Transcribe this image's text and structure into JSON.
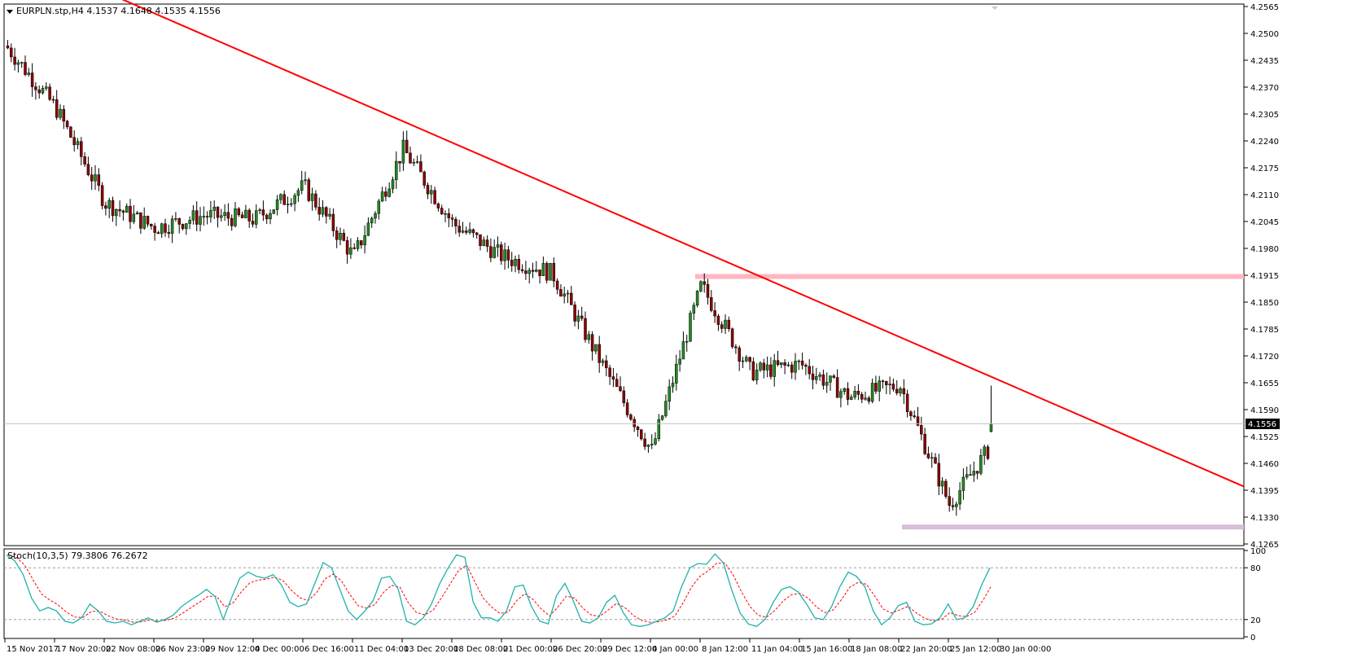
{
  "header": {
    "symbol_line": "EURPLN.stp,H4  4.1537 4.1648 4.1535 4.1556",
    "indicator_line": "Stoch(10,3,5) 79.3806 76.2672"
  },
  "price_axis": {
    "ticks": [
      "4.2565",
      "4.2500",
      "4.2435",
      "4.2370",
      "4.2305",
      "4.2240",
      "4.2175",
      "4.2110",
      "4.2045",
      "4.1980",
      "4.1915",
      "4.1850",
      "4.1785",
      "4.1720",
      "4.1655",
      "4.1590",
      "4.1525",
      "4.1460",
      "4.1395",
      "4.1330",
      "4.1265"
    ],
    "current_price": "4.1556",
    "range": [
      4.1265,
      4.2565
    ]
  },
  "stoch_axis": {
    "ticks": [
      "100",
      "80",
      "20",
      "0"
    ],
    "range": [
      0,
      100
    ],
    "levels": [
      80,
      20
    ]
  },
  "time_axis": {
    "ticks": [
      "15 Nov 2017",
      "17 Nov 20:00",
      "22 Nov 08:00",
      "26 Nov 23:00",
      "29 Nov 12:00",
      "4 Dec 00:00",
      "6 Dec 16:00",
      "11 Dec 04:00",
      "13 Dec 20:00",
      "18 Dec 08:00",
      "21 Dec 00:00",
      "26 Dec 20:00",
      "29 Dec 12:00",
      "4 Jan 00:00",
      "8 Jan 12:00",
      "11 Jan 04:00",
      "15 Jan 16:00",
      "18 Jan 08:00",
      "22 Jan 20:00",
      "25 Jan 12:00",
      "30 Jan 00:00"
    ]
  },
  "colors": {
    "bull_candle": "#228B22",
    "bear_candle": "#8B0000",
    "trendline": "#ff0000",
    "resistance_zone": "#ffb6c1",
    "support_zone": "#d8bfd8",
    "stoch_main": "#20b2aa",
    "stoch_signal": "#ff0000",
    "price_line": "#c0c0c0",
    "axis": "#000000"
  },
  "chart_data": [
    {
      "type": "candlestick",
      "symbol": "EURPLN.stp",
      "timeframe": "H4",
      "ylim": [
        4.1265,
        4.2565
      ],
      "anchor_points": [
        {
          "t": "15 Nov 2017",
          "price": 4.247
        },
        {
          "t": "17 Nov 20:00",
          "price": 4.232
        },
        {
          "t": "22 Nov 08:00",
          "price": 4.209
        },
        {
          "t": "26 Nov 23:00",
          "price": 4.203
        },
        {
          "t": "29 Nov 12:00",
          "price": 4.206
        },
        {
          "t": "4 Dec 00:00",
          "price": 4.205
        },
        {
          "t": "6 Dec 16:00",
          "price": 4.213
        },
        {
          "t": "11 Dec 04:00",
          "price": 4.196
        },
        {
          "t": "13 Dec 20:00",
          "price": 4.222
        },
        {
          "t": "18 Dec 08:00",
          "price": 4.204
        },
        {
          "t": "21 Dec 00:00",
          "price": 4.196
        },
        {
          "t": "26 Dec 20:00",
          "price": 4.192
        },
        {
          "t": "29 Dec 12:00",
          "price": 4.17
        },
        {
          "t": "4 Jan 00:00",
          "price": 4.149
        },
        {
          "t": "8 Jan 12:00",
          "price": 4.189
        },
        {
          "t": "11 Jan 04:00",
          "price": 4.168
        },
        {
          "t": "15 Jan 16:00",
          "price": 4.17
        },
        {
          "t": "18 Jan 08:00",
          "price": 4.162
        },
        {
          "t": "22 Jan 20:00",
          "price": 4.165
        },
        {
          "t": "25 Jan 12:00",
          "price": 4.136
        },
        {
          "t": "30 Jan 00:00",
          "price": 4.153
        }
      ],
      "last_bar": {
        "open": 4.1537,
        "high": 4.1648,
        "low": 4.1535,
        "close": 4.1556
      },
      "trendline": {
        "from": {
          "t": "17 Nov 20:00",
          "price": 4.2585
        },
        "to": {
          "t": "30 Jan 00:00",
          "price": 4.1658
        }
      },
      "zones": [
        {
          "name": "resistance",
          "price": 4.1912
        },
        {
          "name": "support",
          "price": 4.1306
        }
      ]
    },
    {
      "type": "line",
      "indicator": "Stoch(10,3,5)",
      "ylim": [
        0,
        100
      ],
      "levels": [
        80,
        20
      ],
      "series": [
        {
          "name": "main",
          "last": 79.3806,
          "values": [
            95,
            88,
            72,
            45,
            30,
            34,
            30,
            18,
            16,
            22,
            38,
            30,
            18,
            16,
            18,
            14,
            18,
            22,
            17,
            20,
            25,
            35,
            42,
            48,
            55,
            47,
            20,
            45,
            68,
            75,
            70,
            68,
            72,
            60,
            40,
            35,
            38,
            62,
            86,
            80,
            55,
            30,
            20,
            30,
            42,
            68,
            70,
            55,
            18,
            14,
            22,
            38,
            62,
            80,
            95,
            92,
            40,
            22,
            22,
            18,
            30,
            58,
            60,
            35,
            18,
            15,
            48,
            62,
            42,
            18,
            16,
            22,
            40,
            48,
            28,
            14,
            12,
            14,
            18,
            22,
            30,
            58,
            80,
            85,
            84,
            96,
            86,
            55,
            28,
            15,
            12,
            20,
            40,
            55,
            58,
            52,
            38,
            22,
            20,
            35,
            58,
            75,
            70,
            58,
            30,
            14,
            22,
            36,
            40,
            18,
            14,
            15,
            22,
            38,
            20,
            22,
            35,
            60,
            80
          ]
        },
        {
          "name": "signal",
          "last": 76.2672
        }
      ]
    }
  ]
}
